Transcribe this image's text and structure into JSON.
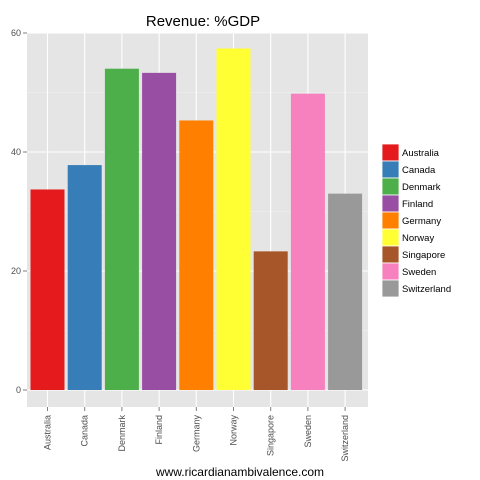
{
  "chart_data": {
    "type": "bar",
    "title": "Revenue: %GDP",
    "xlabel": "",
    "ylabel": "",
    "categories": [
      "Australia",
      "Canada",
      "Denmark",
      "Finland",
      "Germany",
      "Norway",
      "Singapore",
      "Sweden",
      "Switzerland"
    ],
    "values": [
      33.7,
      37.8,
      54.0,
      53.3,
      45.3,
      57.4,
      23.3,
      49.8,
      33.0
    ],
    "colors": [
      "#e41a1c",
      "#377eb8",
      "#4daf4a",
      "#984ea3",
      "#ff7f00",
      "#ffff33",
      "#a65628",
      "#f781bf",
      "#999999"
    ],
    "ylim": [
      0,
      60
    ],
    "yticks": [
      0,
      20,
      40,
      60
    ],
    "grid": true,
    "legend": {
      "placement": "right",
      "entries": [
        "Australia",
        "Canada",
        "Denmark",
        "Finland",
        "Germany",
        "Norway",
        "Singapore",
        "Sweden",
        "Switzerland"
      ]
    }
  },
  "caption": "www.ricardianambivalence.com"
}
